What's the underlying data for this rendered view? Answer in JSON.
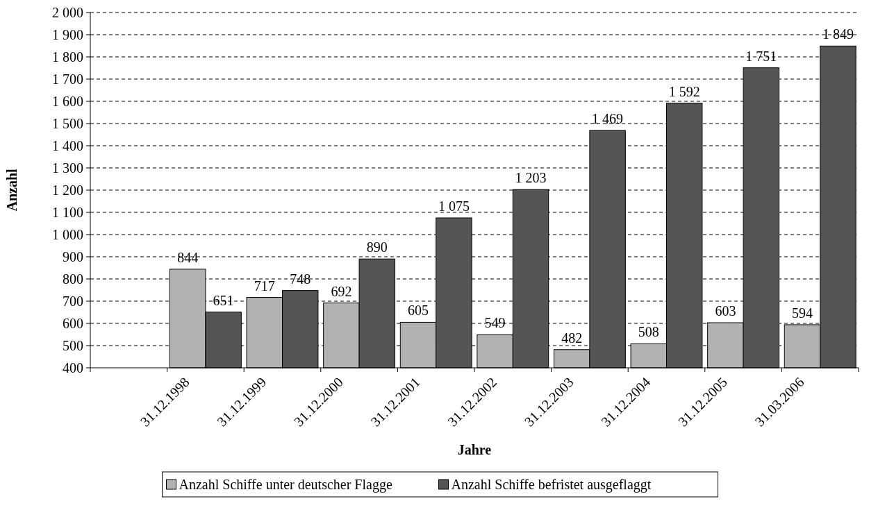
{
  "chart_data": {
    "type": "bar",
    "xlabel": "Jahre",
    "ylabel": "Anzahl",
    "categories": [
      null,
      "31.12.1998",
      "31.12.1999",
      "31.12.2000",
      "31.12.2001",
      "31.12.2002",
      "31.12.2003",
      "31.12.2004",
      "31.12.2005",
      "31.03.2006"
    ],
    "series": [
      {
        "name": "Anzahl Schiffe unter deutscher Flagge",
        "color": "#b2b2b2",
        "values": [
          null,
          844,
          717,
          692,
          605,
          549,
          482,
          508,
          603,
          594
        ],
        "value_labels": [
          null,
          "844",
          "717",
          "692",
          "605",
          "549",
          "482",
          "508",
          "603",
          "594"
        ]
      },
      {
        "name": "Anzahl Schiffe befristet ausgeflaggt",
        "color": "#555555",
        "values": [
          null,
          651,
          748,
          890,
          1075,
          1203,
          1469,
          1592,
          1751,
          1849
        ],
        "value_labels": [
          null,
          "651",
          "748",
          "890",
          "1 075",
          "1 203",
          "1 469",
          "1 592",
          "1 751",
          "1 849"
        ]
      }
    ],
    "ylim": [
      400,
      2000
    ],
    "yticks": [
      {
        "value": 400,
        "label": "400"
      },
      {
        "value": 500,
        "label": "500"
      },
      {
        "value": 600,
        "label": "600"
      },
      {
        "value": 700,
        "label": "700"
      },
      {
        "value": 800,
        "label": "800"
      },
      {
        "value": 900,
        "label": "900"
      },
      {
        "value": 1000,
        "label": "1 000"
      },
      {
        "value": 1100,
        "label": "1 100"
      },
      {
        "value": 1200,
        "label": "1 200"
      },
      {
        "value": 1300,
        "label": "1 300"
      },
      {
        "value": 1400,
        "label": "1 400"
      },
      {
        "value": 1500,
        "label": "1 500"
      },
      {
        "value": 1600,
        "label": "1 600"
      },
      {
        "value": 1700,
        "label": "1 700"
      },
      {
        "value": 1800,
        "label": "1 800"
      },
      {
        "value": 1900,
        "label": "1 900"
      },
      {
        "value": 2000,
        "label": "2 000"
      }
    ],
    "grid": "y",
    "legend": "bottom"
  }
}
